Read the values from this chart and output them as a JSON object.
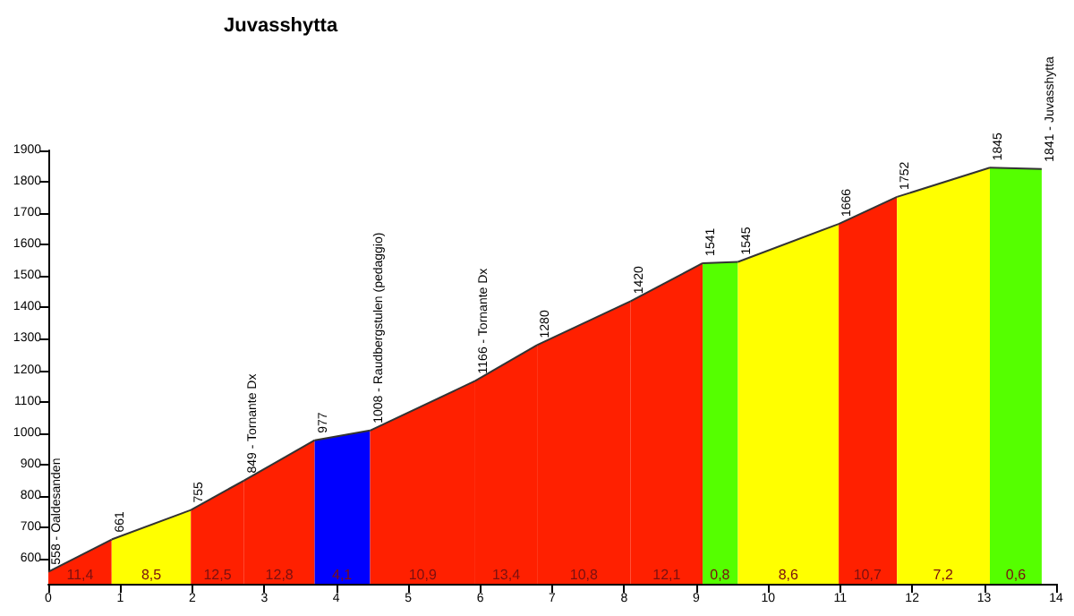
{
  "chart_data": {
    "type": "area",
    "title": "Juvasshytta",
    "xlim": [
      0,
      14
    ],
    "xticks": [
      0,
      1,
      2,
      3,
      4,
      5,
      6,
      7,
      8,
      9,
      10,
      11,
      12,
      13,
      14
    ],
    "ylim": [
      520,
      1900
    ],
    "yticks": [
      600,
      700,
      800,
      900,
      1000,
      1100,
      1200,
      1300,
      1400,
      1500,
      1600,
      1700,
      1800,
      1900
    ],
    "series": [
      {
        "color": "#ff2000",
        "x": [
          0,
          0.88
        ],
        "values": [
          558,
          661
        ]
      },
      {
        "color": "#ffff00",
        "x": [
          0.88,
          1.98
        ],
        "values": [
          661,
          755
        ]
      },
      {
        "color": "#ff2000",
        "x": [
          1.98,
          2.72
        ],
        "values": [
          755,
          849
        ]
      },
      {
        "color": "#ff2000",
        "x": [
          2.72,
          3.7
        ],
        "values": [
          849,
          977
        ]
      },
      {
        "color": "#0000ff",
        "x": [
          3.7,
          4.47
        ],
        "values": [
          977,
          1008
        ]
      },
      {
        "color": "#ff2000",
        "x": [
          4.47,
          5.93
        ],
        "values": [
          1008,
          1166
        ]
      },
      {
        "color": "#ff2000",
        "x": [
          5.93,
          6.79
        ],
        "values": [
          1166,
          1280
        ]
      },
      {
        "color": "#ff2000",
        "x": [
          6.79,
          8.09
        ],
        "values": [
          1280,
          1420
        ]
      },
      {
        "color": "#ff2000",
        "x": [
          8.09,
          9.09
        ],
        "values": [
          1420,
          1541
        ]
      },
      {
        "color": "#55ff00",
        "x": [
          9.09,
          9.58
        ],
        "values": [
          1541,
          1545
        ]
      },
      {
        "color": "#ffff00",
        "x": [
          9.58,
          10.98
        ],
        "values": [
          1545,
          1666
        ]
      },
      {
        "color": "#ff2000",
        "x": [
          10.98,
          11.79
        ],
        "values": [
          1666,
          1752
        ]
      },
      {
        "color": "#ffff00",
        "x": [
          11.79,
          13.08
        ],
        "values": [
          1752,
          1845
        ]
      },
      {
        "color": "#55ff00",
        "x": [
          13.08,
          13.8
        ],
        "values": [
          1845,
          1841
        ]
      }
    ],
    "annotations": [
      {
        "text": "558 - Oaldesanden",
        "x": 0,
        "y": 558
      },
      {
        "text": "661",
        "x": 0.88,
        "y": 661
      },
      {
        "text": "755",
        "x": 1.98,
        "y": 755
      },
      {
        "text": "849 - Tornante Dx",
        "x": 2.72,
        "y": 849
      },
      {
        "text": "977",
        "x": 3.7,
        "y": 977
      },
      {
        "text": "1008 - Raudbergstulen (pedaggio)",
        "x": 4.47,
        "y": 1008
      },
      {
        "text": "1166 - Tornante Dx",
        "x": 5.93,
        "y": 1166
      },
      {
        "text": "1280",
        "x": 6.79,
        "y": 1280
      },
      {
        "text": "1420",
        "x": 8.09,
        "y": 1420
      },
      {
        "text": "1541",
        "x": 9.09,
        "y": 1541
      },
      {
        "text": "1545",
        "x": 9.58,
        "y": 1545
      },
      {
        "text": "1666",
        "x": 10.98,
        "y": 1666
      },
      {
        "text": "1752",
        "x": 11.79,
        "y": 1752
      },
      {
        "text": "1845",
        "x": 13.08,
        "y": 1845
      },
      {
        "text": "1841 - Juvasshytta",
        "x": 13.8,
        "y": 1841
      },
      {
        "text": "11,4",
        "x": 0.44
      },
      {
        "text": "8,5",
        "x": 1.43
      },
      {
        "text": "12,5",
        "x": 2.35
      },
      {
        "text": "12,8",
        "x": 3.21
      },
      {
        "text": "4,1",
        "x": 4.08
      },
      {
        "text": "10,9",
        "x": 5.2
      },
      {
        "text": "13,4",
        "x": 6.36
      },
      {
        "text": "10,8",
        "x": 7.44
      },
      {
        "text": "12,1",
        "x": 8.59
      },
      {
        "text": "0,8",
        "x": 9.33
      },
      {
        "text": "8,6",
        "x": 10.28
      },
      {
        "text": "10,7",
        "x": 11.38
      },
      {
        "text": "7,2",
        "x": 12.43
      },
      {
        "text": "0,6",
        "x": 13.44
      }
    ]
  }
}
